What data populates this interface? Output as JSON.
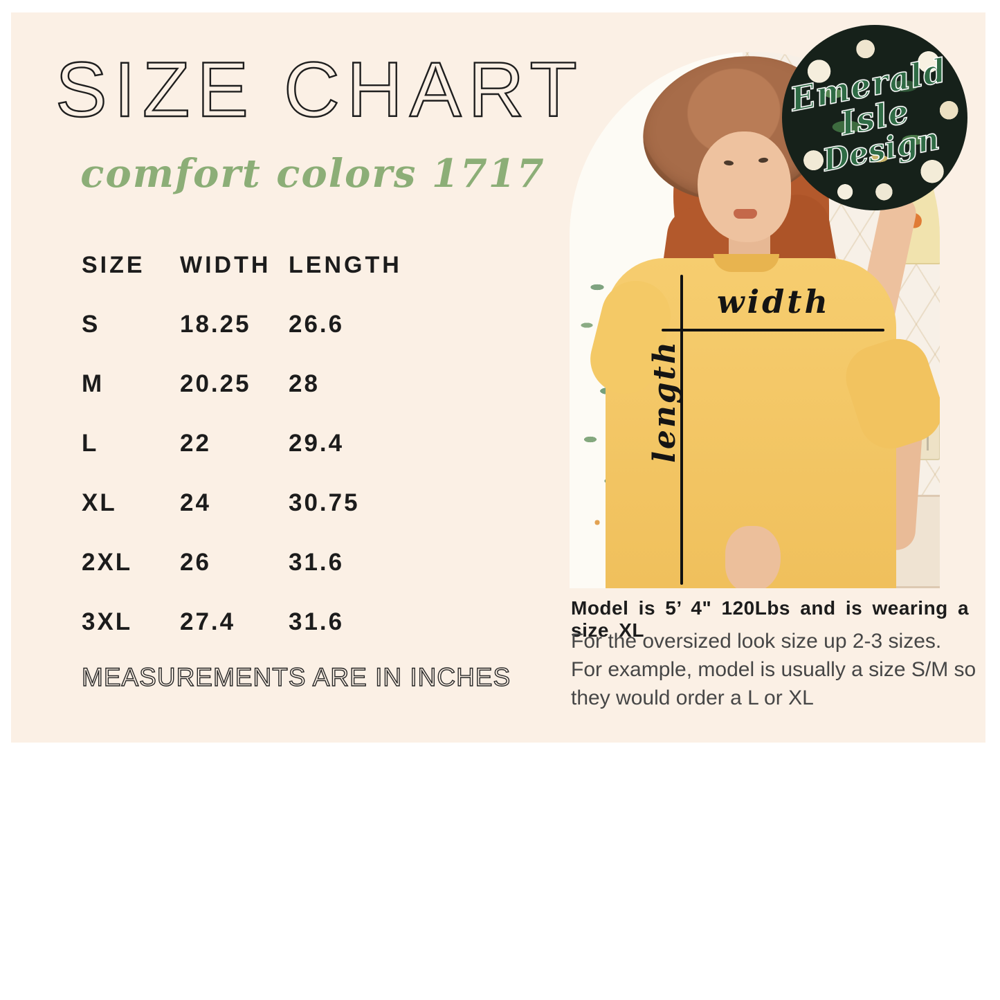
{
  "header": {
    "title": "SIZE CHART",
    "subtitle": "comfort colors 1717"
  },
  "size_table": {
    "columns": [
      "SIZE",
      "WIDTH",
      "LENGTH"
    ],
    "rows": [
      [
        "S",
        "18.25",
        "26.6"
      ],
      [
        "M",
        "20.25",
        "28"
      ],
      [
        "L",
        "22",
        "29.4"
      ],
      [
        "XL",
        "24",
        "30.75"
      ],
      [
        "2XL",
        "26",
        "31.6"
      ],
      [
        "3XL",
        "27.4",
        "31.6"
      ]
    ],
    "footnote": "MEASUREMENTS ARE IN INCHES"
  },
  "photo": {
    "width_label": "width",
    "length_label": "length",
    "caption_bold": "Model is 5’ 4\" 120Lbs and is wearing a size XL",
    "caption_text": "For the oversized look size up 2-3 sizes. For example, model is usually a size S/M so they would order a L or XL"
  },
  "logo": {
    "line1": "Emerald Isle",
    "line2": "Design"
  },
  "colors": {
    "card_background": "#fbf0e5",
    "accent_green": "#8cae77",
    "shirt_yellow": "#f3c763",
    "logo_background": "#16211a",
    "text_dark": "#1e1e1e"
  }
}
